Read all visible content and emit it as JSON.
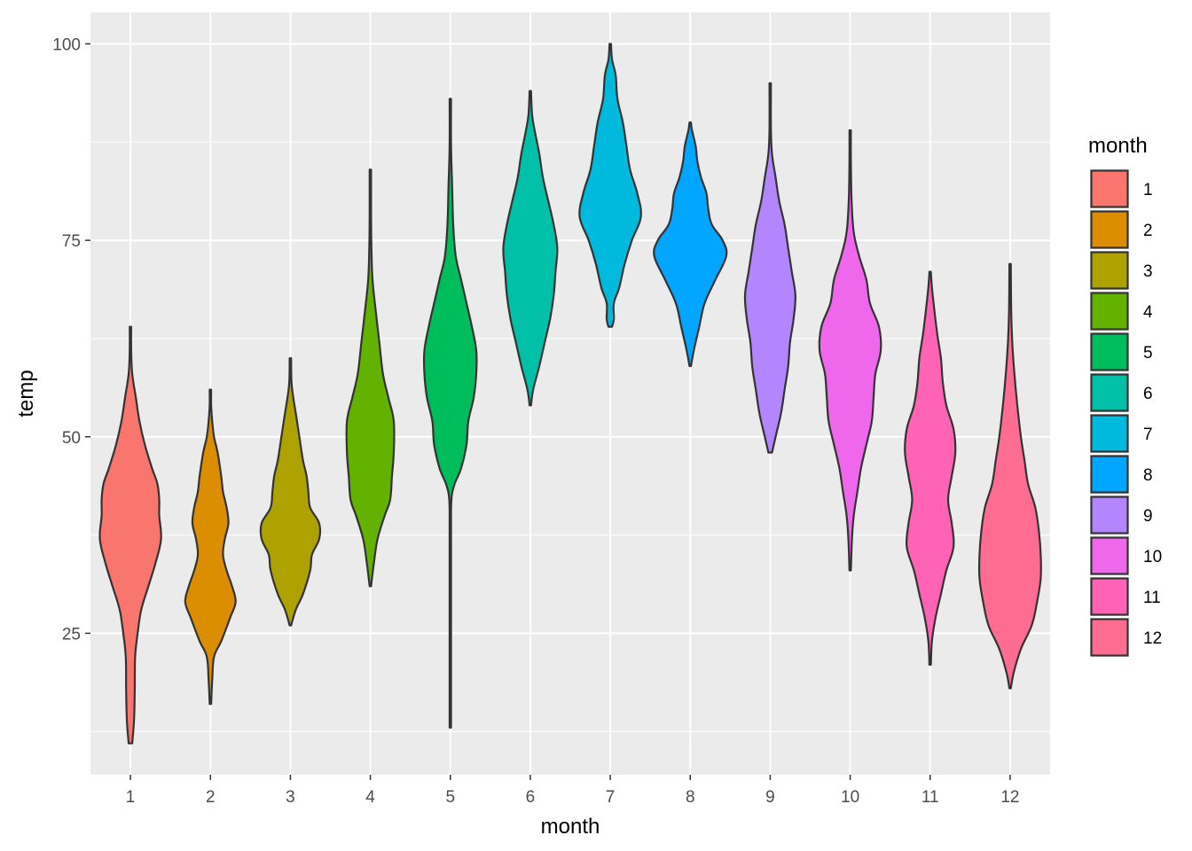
{
  "chart_data": {
    "type": "violin",
    "xlabel": "month",
    "ylabel": "temp",
    "categories": [
      "1",
      "2",
      "3",
      "4",
      "5",
      "6",
      "7",
      "8",
      "9",
      "10",
      "11",
      "12"
    ],
    "ylim": [
      7,
      104
    ],
    "yticks": [
      25,
      50,
      75,
      100
    ],
    "grid": true,
    "legend": {
      "title": "month",
      "placement": "right",
      "labels": [
        "1",
        "2",
        "3",
        "4",
        "5",
        "6",
        "7",
        "8",
        "9",
        "10",
        "11",
        "12"
      ]
    },
    "colors": [
      "#F8766D",
      "#DB8E00",
      "#AEA200",
      "#64B200",
      "#00BD5C",
      "#00C1A7",
      "#00BADE",
      "#00A6FF",
      "#B385FF",
      "#EF67EB",
      "#FF63B6",
      "#FF6C91"
    ],
    "series": [
      {
        "category": "1",
        "min": 11,
        "max": 64,
        "profile": [
          [
            11,
            0.05
          ],
          [
            14,
            0.1
          ],
          [
            18,
            0.12
          ],
          [
            22,
            0.13
          ],
          [
            25,
            0.2
          ],
          [
            28,
            0.3
          ],
          [
            31,
            0.5
          ],
          [
            34,
            0.7
          ],
          [
            37,
            0.85
          ],
          [
            40,
            0.8
          ],
          [
            42,
            0.8
          ],
          [
            44,
            0.75
          ],
          [
            46,
            0.6
          ],
          [
            49,
            0.4
          ],
          [
            52,
            0.25
          ],
          [
            55,
            0.15
          ],
          [
            58,
            0.05
          ],
          [
            61,
            0.02
          ],
          [
            64,
            0.01
          ]
        ]
      },
      {
        "category": "2",
        "min": 16,
        "max": 56,
        "profile": [
          [
            16,
            0.01
          ],
          [
            19,
            0.05
          ],
          [
            22,
            0.1
          ],
          [
            24,
            0.3
          ],
          [
            27,
            0.55
          ],
          [
            29,
            0.7
          ],
          [
            31,
            0.6
          ],
          [
            33,
            0.45
          ],
          [
            35,
            0.35
          ],
          [
            37,
            0.4
          ],
          [
            39,
            0.5
          ],
          [
            41,
            0.45
          ],
          [
            43,
            0.35
          ],
          [
            45,
            0.3
          ],
          [
            48,
            0.2
          ],
          [
            50,
            0.1
          ],
          [
            52,
            0.05
          ],
          [
            54,
            0.02
          ],
          [
            56,
            0.01
          ]
        ]
      },
      {
        "category": "3",
        "min": 26,
        "max": 60,
        "profile": [
          [
            26,
            0.02
          ],
          [
            28,
            0.15
          ],
          [
            30,
            0.35
          ],
          [
            33,
            0.55
          ],
          [
            35,
            0.6
          ],
          [
            37,
            0.8
          ],
          [
            39,
            0.8
          ],
          [
            41,
            0.55
          ],
          [
            43,
            0.5
          ],
          [
            45,
            0.45
          ],
          [
            47,
            0.35
          ],
          [
            50,
            0.25
          ],
          [
            53,
            0.15
          ],
          [
            55,
            0.08
          ],
          [
            57,
            0.03
          ],
          [
            60,
            0.01
          ]
        ]
      },
      {
        "category": "4",
        "min": 31,
        "max": 84,
        "profile": [
          [
            31,
            0.02
          ],
          [
            34,
            0.1
          ],
          [
            37,
            0.2
          ],
          [
            40,
            0.4
          ],
          [
            42,
            0.55
          ],
          [
            45,
            0.6
          ],
          [
            48,
            0.65
          ],
          [
            52,
            0.65
          ],
          [
            55,
            0.5
          ],
          [
            58,
            0.35
          ],
          [
            62,
            0.25
          ],
          [
            66,
            0.15
          ],
          [
            70,
            0.06
          ],
          [
            74,
            0.03
          ],
          [
            78,
            0.02
          ],
          [
            84,
            0.01
          ]
        ]
      },
      {
        "category": "5",
        "min": 13,
        "max": 93,
        "profile": [
          [
            13,
            0.01
          ],
          [
            20,
            0.01
          ],
          [
            30,
            0.01
          ],
          [
            38,
            0.01
          ],
          [
            42,
            0.03
          ],
          [
            44,
            0.12
          ],
          [
            46,
            0.3
          ],
          [
            49,
            0.45
          ],
          [
            52,
            0.5
          ],
          [
            55,
            0.65
          ],
          [
            58,
            0.72
          ],
          [
            61,
            0.72
          ],
          [
            64,
            0.6
          ],
          [
            67,
            0.45
          ],
          [
            70,
            0.3
          ],
          [
            73,
            0.15
          ],
          [
            77,
            0.08
          ],
          [
            82,
            0.05
          ],
          [
            87,
            0.02
          ],
          [
            93,
            0.01
          ]
        ]
      },
      {
        "category": "6",
        "min": 54,
        "max": 94,
        "profile": [
          [
            54,
            0.02
          ],
          [
            56,
            0.08
          ],
          [
            59,
            0.25
          ],
          [
            62,
            0.4
          ],
          [
            65,
            0.55
          ],
          [
            68,
            0.65
          ],
          [
            71,
            0.7
          ],
          [
            74,
            0.75
          ],
          [
            77,
            0.65
          ],
          [
            80,
            0.5
          ],
          [
            83,
            0.35
          ],
          [
            86,
            0.25
          ],
          [
            89,
            0.12
          ],
          [
            91,
            0.05
          ],
          [
            94,
            0.01
          ]
        ]
      },
      {
        "category": "7",
        "min": 64,
        "max": 100,
        "profile": [
          [
            64,
            0.05
          ],
          [
            65,
            0.1
          ],
          [
            67,
            0.1
          ],
          [
            69,
            0.25
          ],
          [
            72,
            0.4
          ],
          [
            75,
            0.6
          ],
          [
            78,
            0.85
          ],
          [
            81,
            0.75
          ],
          [
            84,
            0.55
          ],
          [
            87,
            0.45
          ],
          [
            90,
            0.35
          ],
          [
            93,
            0.2
          ],
          [
            96,
            0.15
          ],
          [
            98,
            0.05
          ],
          [
            100,
            0.01
          ]
        ]
      },
      {
        "category": "8",
        "min": 59,
        "max": 90,
        "profile": [
          [
            59,
            0.02
          ],
          [
            61,
            0.1
          ],
          [
            64,
            0.25
          ],
          [
            67,
            0.4
          ],
          [
            70,
            0.7
          ],
          [
            73,
            1.0
          ],
          [
            75,
            0.9
          ],
          [
            77,
            0.6
          ],
          [
            79,
            0.5
          ],
          [
            81,
            0.45
          ],
          [
            83,
            0.3
          ],
          [
            85,
            0.2
          ],
          [
            87,
            0.15
          ],
          [
            89,
            0.05
          ],
          [
            90,
            0.01
          ]
        ]
      },
      {
        "category": "9",
        "min": 48,
        "max": 95,
        "profile": [
          [
            48,
            0.05
          ],
          [
            50,
            0.15
          ],
          [
            53,
            0.3
          ],
          [
            56,
            0.4
          ],
          [
            59,
            0.5
          ],
          [
            62,
            0.55
          ],
          [
            65,
            0.65
          ],
          [
            68,
            0.7
          ],
          [
            71,
            0.6
          ],
          [
            74,
            0.5
          ],
          [
            77,
            0.4
          ],
          [
            80,
            0.25
          ],
          [
            83,
            0.15
          ],
          [
            86,
            0.05
          ],
          [
            89,
            0.02
          ],
          [
            95,
            0.01
          ]
        ]
      },
      {
        "category": "10",
        "min": 33,
        "max": 89,
        "profile": [
          [
            33,
            0.01
          ],
          [
            37,
            0.05
          ],
          [
            40,
            0.1
          ],
          [
            43,
            0.2
          ],
          [
            46,
            0.3
          ],
          [
            49,
            0.45
          ],
          [
            52,
            0.6
          ],
          [
            55,
            0.65
          ],
          [
            58,
            0.7
          ],
          [
            61,
            0.85
          ],
          [
            64,
            0.8
          ],
          [
            67,
            0.55
          ],
          [
            70,
            0.45
          ],
          [
            73,
            0.25
          ],
          [
            76,
            0.1
          ],
          [
            80,
            0.04
          ],
          [
            85,
            0.02
          ],
          [
            89,
            0.01
          ]
        ]
      },
      {
        "category": "11",
        "min": 21,
        "max": 71,
        "profile": [
          [
            21,
            0.02
          ],
          [
            24,
            0.05
          ],
          [
            27,
            0.15
          ],
          [
            30,
            0.3
          ],
          [
            33,
            0.45
          ],
          [
            36,
            0.65
          ],
          [
            39,
            0.6
          ],
          [
            42,
            0.5
          ],
          [
            45,
            0.6
          ],
          [
            48,
            0.7
          ],
          [
            51,
            0.65
          ],
          [
            54,
            0.45
          ],
          [
            57,
            0.35
          ],
          [
            60,
            0.3
          ],
          [
            63,
            0.2
          ],
          [
            66,
            0.12
          ],
          [
            69,
            0.05
          ],
          [
            71,
            0.01
          ]
        ]
      },
      {
        "category": "12",
        "min": 18,
        "max": 72,
        "profile": [
          [
            18,
            0.02
          ],
          [
            20,
            0.1
          ],
          [
            23,
            0.3
          ],
          [
            26,
            0.6
          ],
          [
            29,
            0.75
          ],
          [
            32,
            0.85
          ],
          [
            35,
            0.85
          ],
          [
            38,
            0.8
          ],
          [
            41,
            0.7
          ],
          [
            44,
            0.5
          ],
          [
            47,
            0.4
          ],
          [
            50,
            0.3
          ],
          [
            54,
            0.2
          ],
          [
            58,
            0.12
          ],
          [
            62,
            0.06
          ],
          [
            66,
            0.03
          ],
          [
            72,
            0.01
          ]
        ]
      }
    ]
  }
}
